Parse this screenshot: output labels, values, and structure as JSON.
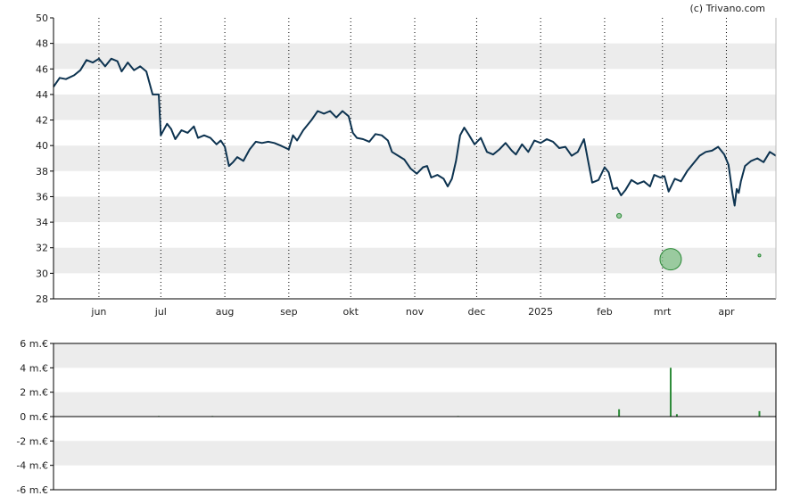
{
  "credit": "(c) Trivano.com",
  "colors": {
    "price_line": "#0d3350",
    "band": "#ececec",
    "axis": "#000000",
    "insider_buy": "#2e8b3a",
    "insider_bubble_fill": "#7fbf86",
    "volume_bar": "#2e8b3a"
  },
  "chart_data": [
    {
      "type": "line",
      "title": "",
      "ylim": [
        28,
        50
      ],
      "yticks": [
        28,
        30,
        32,
        34,
        36,
        38,
        40,
        42,
        44,
        46,
        48,
        50
      ],
      "grid": "alternating horizontal bands, dotted vertical lines at month ticks",
      "xlim": [
        "2024-05-10",
        "2025-04-25"
      ],
      "xticks": [
        {
          "date": "2024-06-01",
          "label": "jun"
        },
        {
          "date": "2024-07-01",
          "label": "jul"
        },
        {
          "date": "2024-08-01",
          "label": "aug"
        },
        {
          "date": "2024-09-01",
          "label": "sep"
        },
        {
          "date": "2024-10-01",
          "label": "okt"
        },
        {
          "date": "2024-11-01",
          "label": "nov"
        },
        {
          "date": "2024-12-01",
          "label": "dec"
        },
        {
          "date": "2025-01-01",
          "label": "2025"
        },
        {
          "date": "2025-02-01",
          "label": "feb"
        },
        {
          "date": "2025-03-01",
          "label": "mrt"
        },
        {
          "date": "2025-04-01",
          "label": "apr"
        }
      ],
      "series": [
        {
          "points": [
            [
              "2024-05-10",
              44.6
            ],
            [
              "2024-05-13",
              45.3
            ],
            [
              "2024-05-16",
              45.2
            ],
            [
              "2024-05-20",
              45.5
            ],
            [
              "2024-05-23",
              45.9
            ],
            [
              "2024-05-26",
              46.7
            ],
            [
              "2024-05-29",
              46.5
            ],
            [
              "2024-06-01",
              46.8
            ],
            [
              "2024-06-04",
              46.2
            ],
            [
              "2024-06-07",
              46.8
            ],
            [
              "2024-06-10",
              46.6
            ],
            [
              "2024-06-12",
              45.8
            ],
            [
              "2024-06-15",
              46.5
            ],
            [
              "2024-06-18",
              45.9
            ],
            [
              "2024-06-21",
              46.2
            ],
            [
              "2024-06-24",
              45.8
            ],
            [
              "2024-06-27",
              44.0
            ],
            [
              "2024-06-30",
              44.0
            ],
            [
              "2024-07-01",
              40.8
            ],
            [
              "2024-07-04",
              41.7
            ],
            [
              "2024-07-06",
              41.3
            ],
            [
              "2024-07-08",
              40.5
            ],
            [
              "2024-07-11",
              41.2
            ],
            [
              "2024-07-14",
              41.0
            ],
            [
              "2024-07-17",
              41.5
            ],
            [
              "2024-07-19",
              40.6
            ],
            [
              "2024-07-22",
              40.8
            ],
            [
              "2024-07-25",
              40.6
            ],
            [
              "2024-07-28",
              40.1
            ],
            [
              "2024-07-30",
              40.4
            ],
            [
              "2024-08-01",
              39.9
            ],
            [
              "2024-08-03",
              38.4
            ],
            [
              "2024-08-05",
              38.7
            ],
            [
              "2024-08-07",
              39.1
            ],
            [
              "2024-08-10",
              38.8
            ],
            [
              "2024-08-13",
              39.7
            ],
            [
              "2024-08-16",
              40.3
            ],
            [
              "2024-08-19",
              40.2
            ],
            [
              "2024-08-22",
              40.3
            ],
            [
              "2024-08-25",
              40.2
            ],
            [
              "2024-08-28",
              40.0
            ],
            [
              "2024-09-01",
              39.7
            ],
            [
              "2024-09-03",
              40.8
            ],
            [
              "2024-09-05",
              40.4
            ],
            [
              "2024-09-08",
              41.2
            ],
            [
              "2024-09-12",
              42.0
            ],
            [
              "2024-09-15",
              42.7
            ],
            [
              "2024-09-18",
              42.5
            ],
            [
              "2024-09-21",
              42.7
            ],
            [
              "2024-09-24",
              42.2
            ],
            [
              "2024-09-27",
              42.7
            ],
            [
              "2024-09-30",
              42.3
            ],
            [
              "2024-10-02",
              41.0
            ],
            [
              "2024-10-04",
              40.6
            ],
            [
              "2024-10-07",
              40.5
            ],
            [
              "2024-10-10",
              40.3
            ],
            [
              "2024-10-13",
              40.9
            ],
            [
              "2024-10-16",
              40.8
            ],
            [
              "2024-10-19",
              40.4
            ],
            [
              "2024-10-21",
              39.5
            ],
            [
              "2024-10-24",
              39.2
            ],
            [
              "2024-10-27",
              38.9
            ],
            [
              "2024-10-30",
              38.2
            ],
            [
              "2024-11-02",
              37.8
            ],
            [
              "2024-11-05",
              38.3
            ],
            [
              "2024-11-07",
              38.4
            ],
            [
              "2024-11-09",
              37.5
            ],
            [
              "2024-11-12",
              37.7
            ],
            [
              "2024-11-15",
              37.4
            ],
            [
              "2024-11-17",
              36.8
            ],
            [
              "2024-11-19",
              37.4
            ],
            [
              "2024-11-21",
              38.8
            ],
            [
              "2024-11-23",
              40.8
            ],
            [
              "2024-11-25",
              41.4
            ],
            [
              "2024-11-27",
              40.9
            ],
            [
              "2024-11-30",
              40.1
            ],
            [
              "2024-12-03",
              40.6
            ],
            [
              "2024-12-06",
              39.5
            ],
            [
              "2024-12-09",
              39.3
            ],
            [
              "2024-12-12",
              39.7
            ],
            [
              "2024-12-15",
              40.2
            ],
            [
              "2024-12-18",
              39.6
            ],
            [
              "2024-12-20",
              39.3
            ],
            [
              "2024-12-23",
              40.1
            ],
            [
              "2024-12-26",
              39.5
            ],
            [
              "2024-12-29",
              40.4
            ],
            [
              "2025-01-01",
              40.2
            ],
            [
              "2025-01-04",
              40.5
            ],
            [
              "2025-01-07",
              40.3
            ],
            [
              "2025-01-10",
              39.8
            ],
            [
              "2025-01-13",
              39.9
            ],
            [
              "2025-01-16",
              39.2
            ],
            [
              "2025-01-19",
              39.5
            ],
            [
              "2025-01-22",
              40.5
            ],
            [
              "2025-01-24",
              38.8
            ],
            [
              "2025-01-26",
              37.1
            ],
            [
              "2025-01-29",
              37.3
            ],
            [
              "2025-02-01",
              38.3
            ],
            [
              "2025-02-03",
              37.9
            ],
            [
              "2025-02-05",
              36.6
            ],
            [
              "2025-02-07",
              36.7
            ],
            [
              "2025-02-09",
              36.1
            ],
            [
              "2025-02-11",
              36.5
            ],
            [
              "2025-02-14",
              37.3
            ],
            [
              "2025-02-17",
              37.0
            ],
            [
              "2025-02-20",
              37.2
            ],
            [
              "2025-02-23",
              36.8
            ],
            [
              "2025-02-25",
              37.7
            ],
            [
              "2025-02-28",
              37.5
            ],
            [
              "2025-03-02",
              37.6
            ],
            [
              "2025-03-04",
              36.4
            ],
            [
              "2025-03-07",
              37.4
            ],
            [
              "2025-03-10",
              37.2
            ],
            [
              "2025-03-13",
              38.0
            ],
            [
              "2025-03-16",
              38.6
            ],
            [
              "2025-03-19",
              39.2
            ],
            [
              "2025-03-22",
              39.5
            ],
            [
              "2025-03-25",
              39.6
            ],
            [
              "2025-03-28",
              39.9
            ],
            [
              "2025-03-31",
              39.3
            ],
            [
              "2025-04-02",
              38.5
            ],
            [
              "2025-04-04",
              36.2
            ],
            [
              "2025-04-05",
              35.3
            ],
            [
              "2025-04-06",
              36.6
            ],
            [
              "2025-04-07",
              36.3
            ],
            [
              "2025-04-08",
              37.2
            ],
            [
              "2025-04-10",
              38.4
            ],
            [
              "2025-04-13",
              38.8
            ],
            [
              "2025-04-16",
              39.0
            ],
            [
              "2025-04-19",
              38.7
            ],
            [
              "2025-04-22",
              39.5
            ],
            [
              "2025-04-25",
              39.2
            ]
          ]
        }
      ],
      "insider_markers": [
        {
          "date": "2025-02-08",
          "value": 34.5,
          "size": "small"
        },
        {
          "date": "2025-03-05",
          "value": 31.1,
          "size": "large"
        },
        {
          "date": "2025-04-17",
          "value": 31.4,
          "size": "tiny"
        }
      ]
    },
    {
      "type": "bar",
      "title": "",
      "ylim": [
        -6,
        6
      ],
      "yticks": [
        {
          "value": 6,
          "label": "6 m.€"
        },
        {
          "value": 4,
          "label": "4 m.€"
        },
        {
          "value": 2,
          "label": "2 m.€"
        },
        {
          "value": 0,
          "label": "0 m.€"
        },
        {
          "value": -2,
          "label": "-2 m.€"
        },
        {
          "value": -4,
          "label": "-4 m.€"
        },
        {
          "value": -6,
          "label": "-6 m.€"
        }
      ],
      "bars": [
        {
          "date": "2024-06-30",
          "value": 0.05
        },
        {
          "date": "2024-07-26",
          "value": 0.05
        },
        {
          "date": "2024-11-22",
          "value": 0.05
        },
        {
          "date": "2025-02-08",
          "value": 0.6
        },
        {
          "date": "2025-03-05",
          "value": 4.0
        },
        {
          "date": "2025-03-08",
          "value": 0.2
        },
        {
          "date": "2025-04-17",
          "value": 0.45
        }
      ]
    }
  ]
}
